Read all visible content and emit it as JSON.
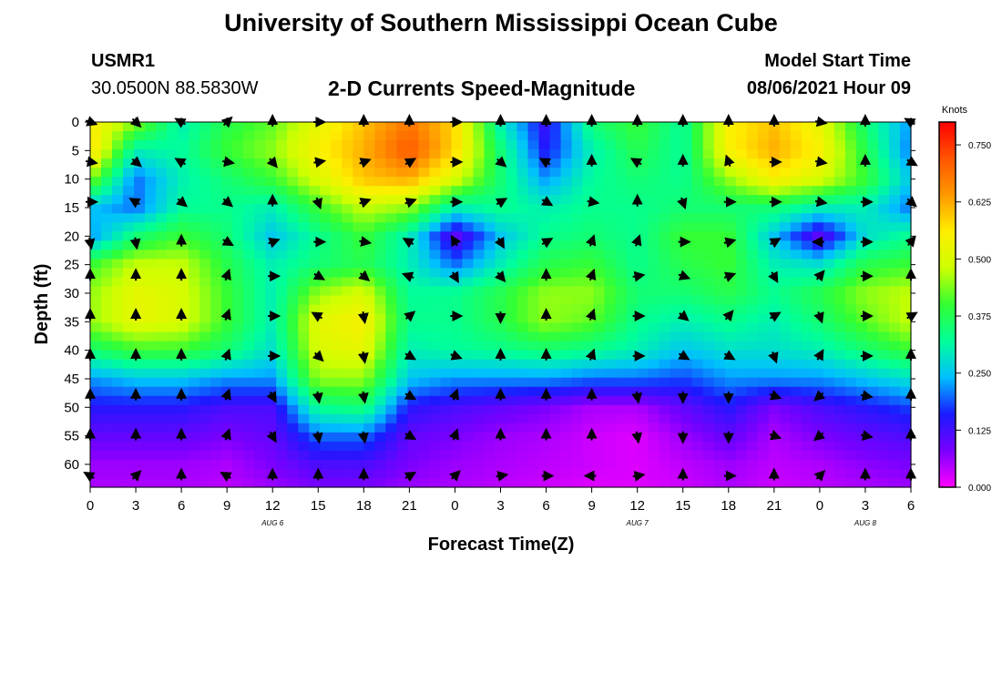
{
  "header": {
    "title_top": "University of Southern Mississippi Ocean Cube",
    "station": "USMR1",
    "coords": "30.0500N  88.5830W",
    "subtitle": "2-D Currents Speed-Magnitude",
    "model_start_label": "Model Start Time",
    "model_start_value": "08/06/2021 Hour 09",
    "title_bottom": "University of Southern Mississippi Ocean Cube"
  },
  "chart_data": {
    "type": "heatmap",
    "title": "2-D Currents Speed-Magnitude",
    "xlabel": "Forecast Time(Z)",
    "ylabel": "Depth (ft)",
    "x_tick_labels": [
      "0",
      "3",
      "6",
      "9",
      "12",
      "15",
      "18",
      "21",
      "0",
      "3",
      "6",
      "9",
      "12",
      "15",
      "18",
      "21",
      "0",
      "3",
      "6"
    ],
    "x_range_hours": [
      0,
      54
    ],
    "date_labels": [
      {
        "text": "AUG 6",
        "hour": 12
      },
      {
        "text": "AUG 7",
        "hour": 36
      },
      {
        "text": "AUG 8",
        "hour": 51
      }
    ],
    "y_ticks": [
      0,
      5,
      10,
      15,
      20,
      25,
      30,
      35,
      40,
      45,
      50,
      55,
      60
    ],
    "y_range": [
      0,
      64
    ],
    "colorbar": {
      "label": "Knots",
      "ticks": [
        "0.750",
        "0.625",
        "0.500",
        "0.375",
        "0.250",
        "0.125",
        "0.000"
      ],
      "range": [
        0,
        0.8
      ],
      "stops": [
        "#ff00ff",
        "#7a00ff",
        "#1a1aff",
        "#00bfff",
        "#00ff9a",
        "#33ff33",
        "#ccff00",
        "#ffee00",
        "#ff9900",
        "#ff5500",
        "#ff0000"
      ]
    },
    "speed_grid_depths": [
      0,
      5,
      10,
      15,
      20,
      25,
      30,
      35,
      40,
      45,
      50,
      55,
      60,
      64
    ],
    "speed_grid_hours": [
      0,
      3,
      6,
      9,
      12,
      15,
      18,
      21,
      24,
      27,
      30,
      33,
      36,
      39,
      42,
      45,
      48,
      51,
      54
    ],
    "speed_grid": [
      [
        0.55,
        0.45,
        0.3,
        0.38,
        0.42,
        0.52,
        0.6,
        0.68,
        0.58,
        0.3,
        0.13,
        0.35,
        0.4,
        0.32,
        0.55,
        0.6,
        0.52,
        0.35,
        0.22
      ],
      [
        0.58,
        0.3,
        0.32,
        0.4,
        0.45,
        0.55,
        0.62,
        0.72,
        0.58,
        0.35,
        0.15,
        0.3,
        0.38,
        0.32,
        0.55,
        0.62,
        0.55,
        0.38,
        0.2
      ],
      [
        0.45,
        0.2,
        0.3,
        0.35,
        0.4,
        0.5,
        0.6,
        0.62,
        0.5,
        0.35,
        0.22,
        0.32,
        0.35,
        0.33,
        0.45,
        0.55,
        0.5,
        0.4,
        0.25
      ],
      [
        0.25,
        0.2,
        0.32,
        0.33,
        0.3,
        0.4,
        0.48,
        0.45,
        0.3,
        0.33,
        0.3,
        0.33,
        0.33,
        0.35,
        0.35,
        0.35,
        0.3,
        0.3,
        0.2
      ],
      [
        0.22,
        0.35,
        0.4,
        0.35,
        0.25,
        0.33,
        0.4,
        0.3,
        0.1,
        0.25,
        0.33,
        0.35,
        0.33,
        0.4,
        0.4,
        0.25,
        0.1,
        0.28,
        0.33
      ],
      [
        0.4,
        0.48,
        0.48,
        0.38,
        0.3,
        0.35,
        0.38,
        0.3,
        0.2,
        0.3,
        0.38,
        0.4,
        0.33,
        0.38,
        0.4,
        0.3,
        0.28,
        0.38,
        0.4
      ],
      [
        0.45,
        0.52,
        0.5,
        0.4,
        0.3,
        0.45,
        0.5,
        0.32,
        0.33,
        0.38,
        0.45,
        0.45,
        0.35,
        0.35,
        0.38,
        0.33,
        0.38,
        0.45,
        0.48
      ],
      [
        0.45,
        0.52,
        0.5,
        0.4,
        0.3,
        0.52,
        0.55,
        0.33,
        0.33,
        0.38,
        0.45,
        0.42,
        0.33,
        0.3,
        0.33,
        0.3,
        0.35,
        0.42,
        0.48
      ],
      [
        0.35,
        0.4,
        0.4,
        0.35,
        0.28,
        0.5,
        0.52,
        0.3,
        0.32,
        0.33,
        0.35,
        0.33,
        0.3,
        0.25,
        0.28,
        0.28,
        0.3,
        0.35,
        0.4
      ],
      [
        0.22,
        0.25,
        0.25,
        0.22,
        0.22,
        0.45,
        0.45,
        0.25,
        0.22,
        0.22,
        0.22,
        0.2,
        0.2,
        0.18,
        0.22,
        0.22,
        0.22,
        0.25,
        0.28
      ],
      [
        0.15,
        0.15,
        0.15,
        0.12,
        0.12,
        0.33,
        0.35,
        0.15,
        0.12,
        0.1,
        0.08,
        0.05,
        0.05,
        0.1,
        0.15,
        0.08,
        0.12,
        0.15,
        0.18
      ],
      [
        0.1,
        0.1,
        0.1,
        0.08,
        0.1,
        0.2,
        0.2,
        0.1,
        0.08,
        0.06,
        0.05,
        0.03,
        0.02,
        0.06,
        0.1,
        0.05,
        0.08,
        0.1,
        0.12
      ],
      [
        0.06,
        0.06,
        0.06,
        0.05,
        0.08,
        0.12,
        0.12,
        0.08,
        0.06,
        0.05,
        0.04,
        0.03,
        0.02,
        0.04,
        0.06,
        0.04,
        0.05,
        0.07,
        0.08
      ],
      [
        0.05,
        0.05,
        0.05,
        0.04,
        0.06,
        0.08,
        0.08,
        0.06,
        0.05,
        0.04,
        0.03,
        0.02,
        0.02,
        0.03,
        0.05,
        0.03,
        0.04,
        0.05,
        0.06
      ]
    ],
    "vector_hours": [
      0,
      3,
      6,
      9,
      12,
      15,
      18,
      21,
      24,
      27,
      30,
      33,
      36,
      39,
      42,
      45,
      48,
      51,
      54
    ],
    "vector_depths": [
      0,
      7,
      14,
      21,
      27,
      34,
      41,
      48,
      55,
      62
    ],
    "vector_direction_deg": [
      [
        110,
        135,
        300,
        45,
        0,
        90,
        0,
        0,
        90,
        0,
        0,
        0,
        0,
        0,
        0,
        0,
        100,
        0,
        300
      ],
      [
        100,
        130,
        300,
        100,
        140,
        80,
        70,
        60,
        90,
        130,
        300,
        0,
        300,
        0,
        340,
        90,
        100,
        0,
        120
      ],
      [
        90,
        300,
        130,
        130,
        0,
        160,
        70,
        70,
        90,
        60,
        120,
        100,
        0,
        160,
        90,
        90,
        100,
        90,
        130
      ],
      [
        170,
        170,
        0,
        120,
        70,
        90,
        100,
        300,
        330,
        150,
        60,
        20,
        20,
        90,
        75,
        60,
        270,
        90,
        40
      ],
      [
        0,
        0,
        0,
        20,
        90,
        120,
        130,
        290,
        150,
        140,
        0,
        20,
        80,
        110,
        70,
        150,
        40,
        90,
        0
      ],
      [
        0,
        0,
        0,
        20,
        90,
        300,
        170,
        50,
        90,
        180,
        0,
        20,
        90,
        130,
        40,
        60,
        160,
        90,
        60
      ],
      [
        0,
        0,
        0,
        20,
        90,
        135,
        170,
        120,
        110,
        0,
        0,
        20,
        90,
        120,
        120,
        160,
        30,
        90,
        0
      ],
      [
        0,
        0,
        0,
        20,
        150,
        170,
        170,
        120,
        20,
        0,
        0,
        0,
        170,
        180,
        180,
        110,
        230,
        100,
        0
      ],
      [
        0,
        0,
        0,
        20,
        150,
        170,
        170,
        120,
        20,
        0,
        0,
        0,
        170,
        180,
        180,
        110,
        230,
        100,
        0
      ],
      [
        300,
        45,
        0,
        300,
        0,
        0,
        0,
        60,
        45,
        80,
        90,
        270,
        80,
        0,
        90,
        0,
        45,
        0,
        0
      ]
    ]
  }
}
